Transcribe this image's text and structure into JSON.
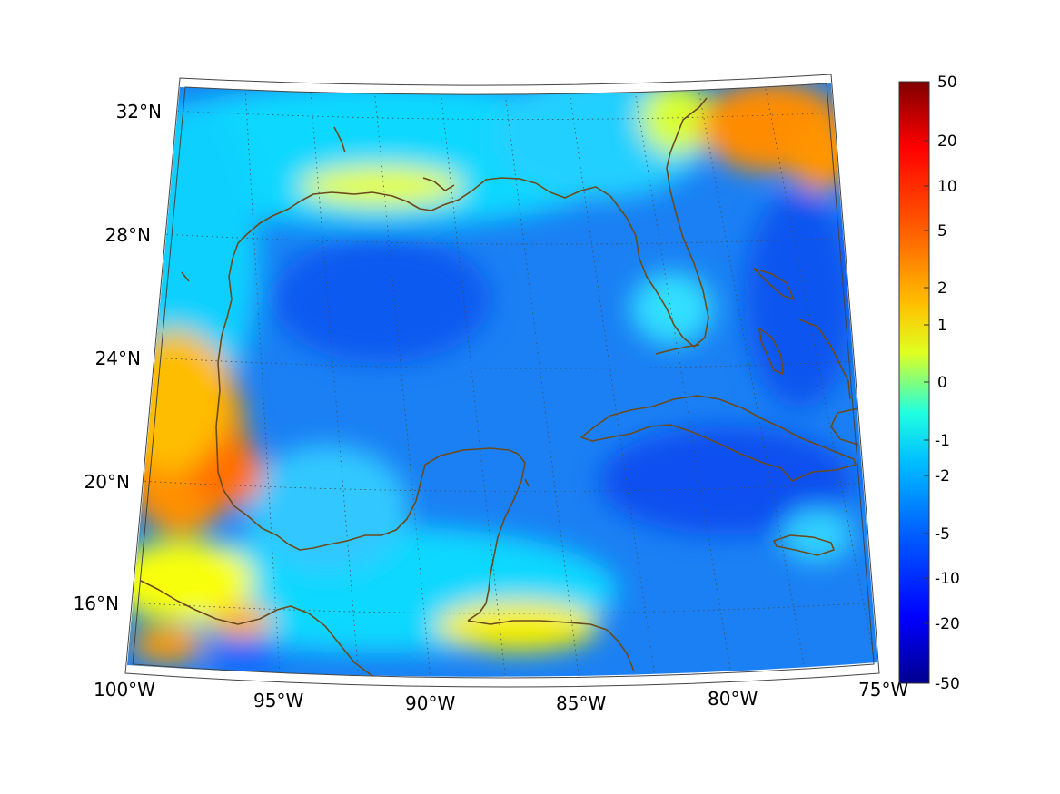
{
  "map": {
    "projection": "lambert-conformal-conic",
    "extent": {
      "lon": [
        -100,
        -75
      ],
      "lat": [
        14,
        32
      ]
    },
    "longitude_labels": [
      "100°W",
      "95°W",
      "90°W",
      "85°W",
      "80°W",
      "75°W"
    ],
    "latitude_labels": [
      "32°N",
      "28°N",
      "24°N",
      "20°N",
      "16°N"
    ],
    "coastline_color": "#6b4a1c",
    "grid": "dotted"
  },
  "colorbar": {
    "colormap": "jet",
    "tick_labels": [
      "50",
      "20",
      "10",
      "5",
      "2",
      "1",
      "0",
      "-1",
      "-2",
      "-5",
      "-10",
      "-20",
      "-50"
    ],
    "scale": "nonlinear"
  },
  "field": {
    "color_stops": [
      "#00008f",
      "#0000ff",
      "#0080ff",
      "#00ffff",
      "#80ff80",
      "#ffff00",
      "#ff8000",
      "#ff0000",
      "#800000"
    ]
  }
}
